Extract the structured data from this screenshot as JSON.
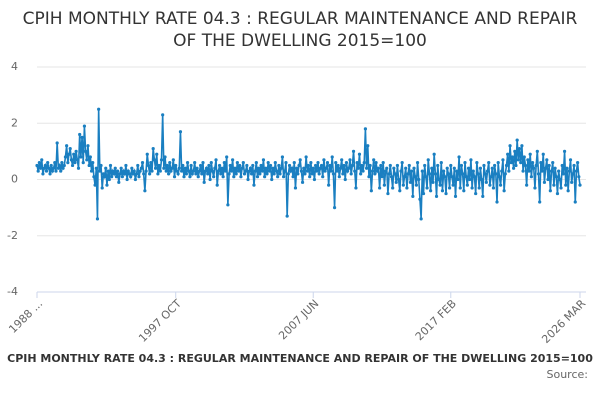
{
  "chart_data": {
    "type": "line",
    "title": "CPIH MONTHLY RATE 04.3 : REGULAR MAINTENANCE AND REPAIR OF THE DWELLING 2015=100",
    "source": "Source:",
    "ylim": [
      -4,
      4
    ],
    "yticks": [
      -4,
      -2,
      0,
      2,
      4
    ],
    "grid": true,
    "categories": [
      "1988 ...",
      null,
      null,
      null,
      null,
      null,
      null,
      null,
      null,
      null,
      null,
      null,
      null,
      null,
      null,
      null,
      null,
      null,
      null,
      null,
      null,
      null,
      null,
      null,
      null,
      null,
      null,
      null,
      null,
      null,
      null,
      null,
      null,
      null,
      null,
      null,
      null,
      null,
      null,
      null,
      null,
      null,
      null,
      null,
      null,
      null,
      null,
      null,
      null,
      null,
      null,
      null,
      null,
      null,
      null,
      null,
      null,
      null,
      null,
      null,
      null,
      null,
      null,
      null,
      null,
      null,
      null,
      null,
      null,
      null,
      null,
      null,
      null,
      null,
      null,
      null,
      null,
      null,
      null,
      null,
      null,
      null,
      null,
      null,
      null,
      null,
      null,
      null,
      null,
      null,
      null,
      null,
      null,
      null,
      null,
      null,
      null,
      null,
      null,
      null,
      null,
      null,
      null,
      null,
      null,
      null,
      null,
      null,
      null,
      null,
      null,
      null,
      null,
      null,
      null,
      null,
      null,
      "1997 OCT",
      null,
      null,
      null,
      null,
      null,
      null,
      null,
      null,
      null,
      null,
      null,
      null,
      null,
      null,
      null,
      null,
      null,
      null,
      null,
      null,
      null,
      null,
      null,
      null,
      null,
      null,
      null,
      null,
      null,
      null,
      null,
      null,
      null,
      null,
      null,
      null,
      null,
      null,
      null,
      null,
      null,
      null,
      null,
      null,
      null,
      null,
      null,
      null,
      null,
      null,
      null,
      null,
      null,
      null,
      null,
      null,
      null,
      null,
      null,
      null,
      null,
      null,
      null,
      null,
      null,
      null,
      null,
      null,
      null,
      null,
      null,
      null,
      null,
      null,
      null,
      null,
      null,
      null,
      null,
      null,
      null,
      null,
      null,
      null,
      null,
      null,
      null,
      null,
      null,
      null,
      null,
      null,
      null,
      null,
      null,
      null,
      null,
      null,
      null,
      null,
      null,
      null,
      null,
      null,
      null,
      null,
      null,
      null,
      null,
      null,
      null,
      null,
      null,
      null,
      null,
      "2007 JUN",
      null,
      null,
      null,
      null,
      null,
      null,
      null,
      null,
      null,
      null,
      null,
      null,
      null,
      null,
      null,
      null,
      null,
      null,
      null,
      null,
      null,
      null,
      null,
      null,
      null,
      null,
      null,
      null,
      null,
      null,
      null,
      null,
      null,
      null,
      null,
      null,
      null,
      null,
      null,
      null,
      null,
      null,
      null,
      null,
      null,
      null,
      null,
      null,
      null,
      null,
      null,
      null,
      null,
      null,
      null,
      null,
      null,
      null,
      null,
      null,
      null,
      null,
      null,
      null,
      null,
      null,
      null,
      null,
      null,
      null,
      null,
      null,
      null,
      null,
      null,
      null,
      null,
      null,
      null,
      null,
      null,
      null,
      null,
      null,
      null,
      null,
      null,
      null,
      null,
      null,
      null,
      null,
      null,
      null,
      null,
      null,
      null,
      null,
      null,
      null,
      null,
      null,
      null,
      null,
      null,
      null,
      null,
      null,
      null,
      null,
      null,
      null,
      null,
      null,
      null,
      "2017 FEB",
      null,
      null,
      null,
      null,
      null,
      null,
      null,
      null,
      null,
      null,
      null,
      null,
      null,
      null,
      null,
      null,
      null,
      null,
      null,
      null,
      null,
      null,
      null,
      null,
      null,
      null,
      null,
      null,
      null,
      null,
      null,
      null,
      null,
      null,
      null,
      null,
      null,
      null,
      null,
      null,
      null,
      null,
      null,
      null,
      null,
      null,
      null,
      null,
      null,
      null,
      null,
      null,
      null,
      null,
      null,
      null,
      null,
      null,
      null,
      null,
      null,
      null,
      null,
      null,
      null,
      null,
      null,
      null,
      null,
      null,
      null,
      null,
      null,
      null,
      null,
      null,
      null,
      null,
      null,
      null,
      null,
      null,
      null,
      null,
      null,
      null,
      null,
      null,
      null,
      null,
      null,
      null,
      null,
      null,
      null,
      null,
      null,
      null,
      null,
      null,
      null,
      null,
      null,
      null,
      null,
      null,
      null,
      null,
      "2026 MAR"
    ],
    "series": [
      {
        "color": "#1a7fc1",
        "values": [
          0.5,
          0.3,
          0.6,
          0.4,
          0.7,
          0.2,
          0.4,
          0.5,
          0.3,
          0.6,
          0.4,
          0.2,
          0.5,
          0.3,
          0.4,
          0.6,
          0.3,
          1.3,
          0.4,
          0.5,
          0.3,
          0.6,
          0.4,
          0.5,
          0.8,
          1.2,
          0.6,
          0.9,
          1.1,
          0.7,
          0.5,
          0.9,
          0.6,
          1.0,
          0.7,
          0.4,
          1.6,
          0.8,
          1.5,
          0.6,
          1.9,
          1.0,
          0.7,
          1.2,
          0.5,
          0.8,
          0.3,
          0.6,
          0.1,
          -0.2,
          0.4,
          -1.4,
          2.5,
          0.3,
          0.5,
          -0.3,
          0.2,
          0.1,
          0.4,
          -0.2,
          0.3,
          0.0,
          0.5,
          0.1,
          0.3,
          0.2,
          0.4,
          0.1,
          0.3,
          -0.1,
          0.2,
          0.4,
          0.1,
          0.3,
          0.2,
          0.5,
          0.0,
          0.3,
          0.2,
          0.1,
          0.4,
          0.2,
          0.3,
          0.0,
          0.2,
          0.5,
          0.1,
          0.3,
          0.4,
          0.6,
          0.2,
          -0.4,
          0.3,
          0.9,
          0.5,
          0.2,
          0.6,
          0.3,
          1.1,
          0.7,
          0.4,
          0.9,
          0.2,
          0.5,
          0.3,
          0.7,
          2.3,
          0.4,
          0.8,
          0.3,
          0.5,
          0.2,
          0.6,
          0.3,
          0.4,
          0.7,
          0.1,
          0.5,
          0.3,
          0.2,
          0.4,
          1.7,
          0.3,
          0.5,
          0.1,
          0.4,
          0.2,
          0.6,
          0.3,
          0.1,
          0.5,
          0.2,
          0.3,
          0.6,
          0.2,
          0.4,
          0.1,
          0.3,
          0.5,
          0.2,
          0.6,
          -0.1,
          0.3,
          0.4,
          0.2,
          0.5,
          0.0,
          0.6,
          0.3,
          0.1,
          0.4,
          0.7,
          -0.2,
          0.3,
          0.5,
          0.2,
          0.4,
          0.1,
          0.6,
          0.3,
          0.8,
          -0.9,
          0.2,
          0.5,
          0.3,
          0.7,
          0.1,
          0.4,
          0.2,
          0.6,
          0.3,
          0.5,
          0.1,
          0.4,
          0.6,
          0.2,
          0.3,
          0.5,
          0.0,
          0.3,
          0.4,
          0.2,
          0.5,
          -0.2,
          0.3,
          0.6,
          0.1,
          0.4,
          0.2,
          0.5,
          0.3,
          0.7,
          0.1,
          0.4,
          0.2,
          0.6,
          0.3,
          0.5,
          0.0,
          0.4,
          0.2,
          0.6,
          0.3,
          0.1,
          0.5,
          0.2,
          0.4,
          0.8,
          0.1,
          0.3,
          0.6,
          -1.3,
          0.2,
          0.5,
          0.3,
          0.4,
          0.1,
          0.6,
          -0.3,
          0.4,
          0.2,
          0.5,
          0.7,
          0.3,
          -0.1,
          0.4,
          0.2,
          0.8,
          0.3,
          0.5,
          0.1,
          0.6,
          0.2,
          0.4,
          0.0,
          0.5,
          0.3,
          0.6,
          0.2,
          0.4,
          0.5,
          0.1,
          0.7,
          0.3,
          0.4,
          0.6,
          -0.2,
          0.5,
          0.3,
          0.8,
          0.2,
          -1.0,
          0.6,
          0.3,
          0.5,
          0.1,
          0.4,
          0.7,
          0.2,
          0.5,
          0.0,
          0.6,
          0.3,
          0.4,
          0.7,
          0.2,
          0.5,
          1.0,
          0.3,
          -0.3,
          0.6,
          0.4,
          0.9,
          0.2,
          0.5,
          0.3,
          0.6,
          1.8,
          0.4,
          1.2,
          0.1,
          0.5,
          -0.4,
          0.3,
          0.7,
          0.2,
          0.6,
          0.3,
          0.4,
          -0.3,
          0.5,
          0.1,
          0.6,
          -0.2,
          0.3,
          0.4,
          -0.5,
          0.2,
          0.5,
          0.1,
          -0.3,
          0.4,
          0.2,
          -0.1,
          0.5,
          0.0,
          -0.4,
          0.3,
          0.6,
          -0.2,
          0.1,
          0.4,
          -0.3,
          0.2,
          0.5,
          -0.1,
          0.3,
          -0.6,
          0.4,
          0.1,
          -0.2,
          0.6,
          0.0,
          -0.7,
          -1.4,
          0.3,
          -0.5,
          0.5,
          0.1,
          -0.3,
          0.7,
          0.2,
          -0.4,
          0.4,
          -0.1,
          0.9,
          0.2,
          -0.6,
          0.5,
          0.0,
          -0.2,
          0.6,
          -0.4,
          0.3,
          0.1,
          -0.5,
          0.4,
          0.2,
          -0.3,
          0.5,
          0.1,
          -0.2,
          0.4,
          -0.6,
          0.3,
          0.0,
          0.8,
          -0.3,
          0.5,
          0.2,
          -0.4,
          0.6,
          0.1,
          -0.2,
          0.4,
          0.0,
          0.7,
          -0.3,
          0.3,
          0.1,
          -0.5,
          0.6,
          0.2,
          -0.3,
          0.4,
          0.0,
          -0.6,
          0.5,
          0.2,
          -0.1,
          0.3,
          0.6,
          -0.2,
          0.1,
          0.4,
          -0.3,
          0.5,
          0.2,
          -0.8,
          0.6,
          0.1,
          -0.2,
          0.3,
          0.7,
          -0.4,
          0.2,
          0.5,
          0.9,
          0.3,
          1.2,
          0.6,
          0.8,
          0.4,
          1.0,
          0.5,
          1.4,
          0.7,
          1.1,
          0.6,
          1.2,
          0.3,
          0.8,
          0.5,
          -0.2,
          0.7,
          0.3,
          0.9,
          0.1,
          0.6,
          0.4,
          -0.3,
          0.5,
          1.0,
          0.2,
          -0.8,
          0.6,
          0.3,
          0.9,
          -0.1,
          0.4,
          0.7,
          0.0,
          0.5,
          -0.4,
          0.3,
          0.6,
          -0.2,
          0.4,
          0.1,
          -0.5,
          0.3,
          0.0,
          -0.3,
          0.5,
          0.2,
          1.0,
          -0.2,
          0.4,
          -0.4,
          0.3,
          0.7,
          -0.1,
          0.2,
          0.5,
          -0.8,
          0.3,
          0.6,
          0.1,
          -0.2
        ]
      }
    ]
  }
}
